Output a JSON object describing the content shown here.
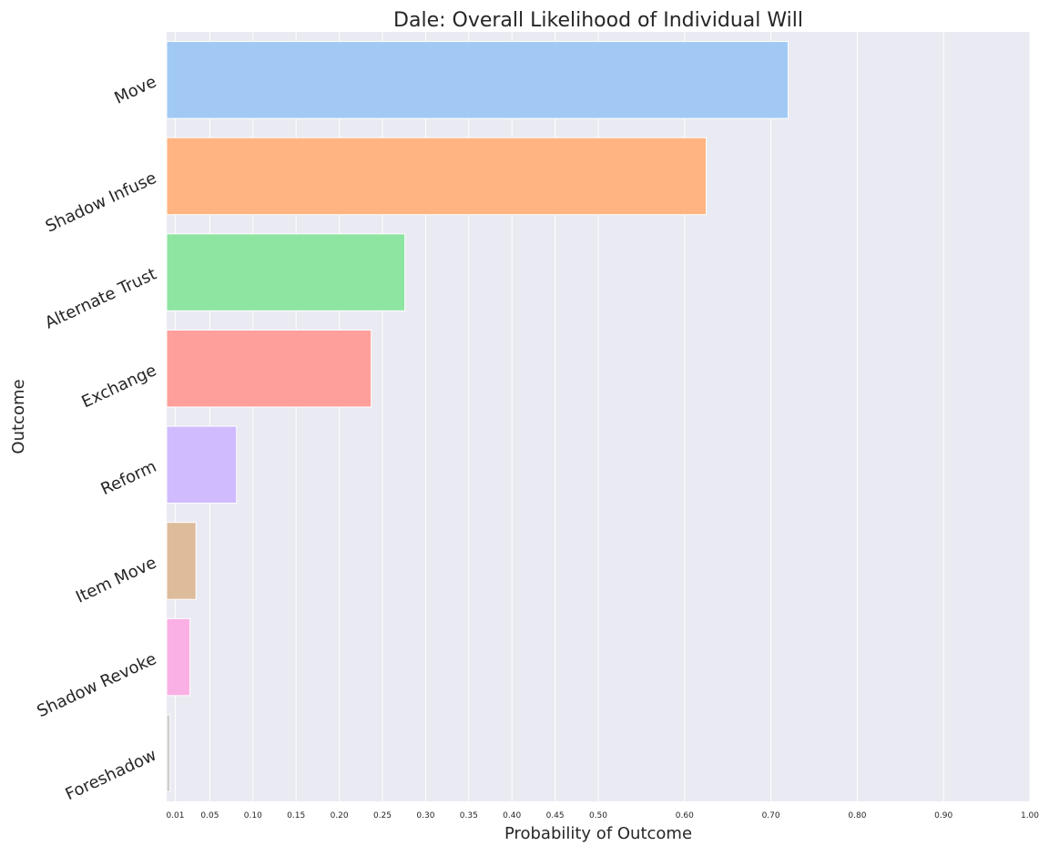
{
  "chart_data": {
    "type": "bar",
    "orientation": "horizontal",
    "title": "Dale: Overall Likelihood of Individual Will",
    "xlabel": "Probability of Outcome",
    "ylabel": "Outcome",
    "categories": [
      "Move",
      "Shadow Infuse",
      "Alternate Trust",
      "Exchange",
      "Reform",
      "Item Move",
      "Shadow Revoke",
      "Foreshadow"
    ],
    "values": [
      0.72,
      0.625,
      0.276,
      0.237,
      0.081,
      0.034,
      0.027,
      0.004
    ],
    "colors": [
      "#a1c9f4",
      "#ffb482",
      "#8de5a1",
      "#ff9f9b",
      "#d0bbff",
      "#debb9b",
      "#fab0e4",
      "#cfcfcf"
    ],
    "xlim": [
      0.0,
      1.0
    ],
    "xticks": [
      0.01,
      0.05,
      0.1,
      0.15,
      0.2,
      0.25,
      0.3,
      0.35,
      0.4,
      0.45,
      0.5,
      0.6,
      0.7,
      0.8,
      0.9,
      1.0
    ],
    "xtick_labels": [
      "0.01",
      "0.05",
      "0.10",
      "0.15",
      "0.20",
      "0.25",
      "0.30",
      "0.35",
      "0.40",
      "0.45",
      "0.50",
      "0.60",
      "0.70",
      "0.80",
      "0.90",
      "1.00"
    ],
    "grid": true,
    "background": "#eaeaf2",
    "grid_color": "#ffffff"
  }
}
